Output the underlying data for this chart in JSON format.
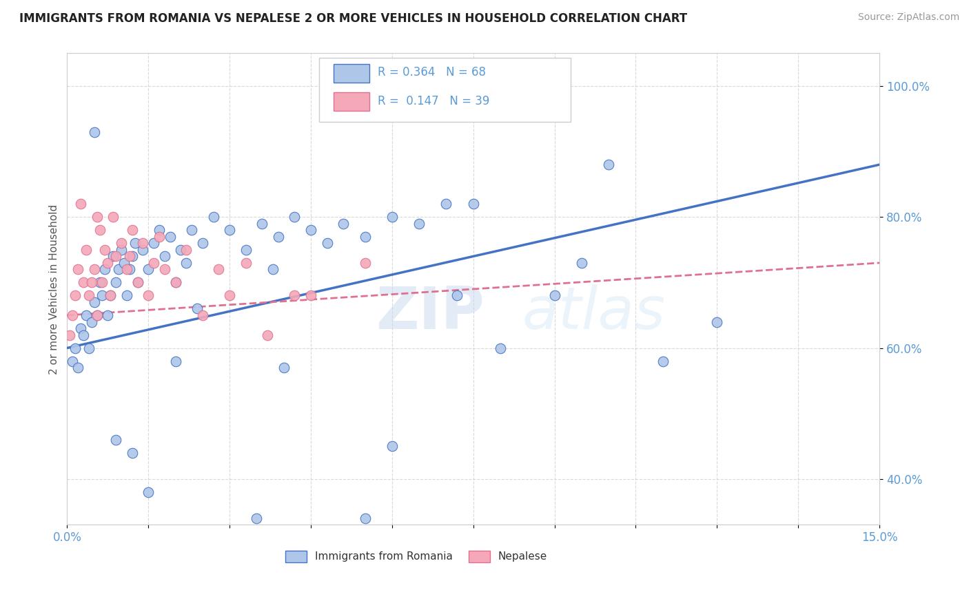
{
  "title": "IMMIGRANTS FROM ROMANIA VS NEPALESE 2 OR MORE VEHICLES IN HOUSEHOLD CORRELATION CHART",
  "source": "Source: ZipAtlas.com",
  "ylabel_label": "2 or more Vehicles in Household",
  "legend_romania": "Immigrants from Romania",
  "legend_nepalese": "Nepalese",
  "R_romania": 0.364,
  "N_romania": 68,
  "R_nepalese": 0.147,
  "N_nepalese": 39,
  "color_romania": "#aec6e8",
  "color_nepalese": "#f4a8b8",
  "color_line_romania": "#4472c4",
  "color_line_nepalese": "#e07090",
  "color_tick": "#5b9bd5",
  "xmin": 0.0,
  "xmax": 15.0,
  "ymin": 33.0,
  "ymax": 105.0,
  "yticks": [
    40.0,
    60.0,
    80.0,
    100.0
  ],
  "romania_x": [
    0.1,
    0.15,
    0.2,
    0.25,
    0.3,
    0.35,
    0.4,
    0.45,
    0.5,
    0.55,
    0.6,
    0.65,
    0.7,
    0.75,
    0.8,
    0.85,
    0.9,
    0.95,
    1.0,
    1.05,
    1.1,
    1.15,
    1.2,
    1.25,
    1.3,
    1.4,
    1.5,
    1.6,
    1.7,
    1.8,
    1.9,
    2.0,
    2.1,
    2.2,
    2.3,
    2.5,
    2.7,
    3.0,
    3.3,
    3.6,
    3.9,
    4.2,
    4.5,
    4.8,
    5.1,
    5.5,
    6.0,
    6.5,
    7.0,
    7.5,
    8.0,
    9.0,
    9.5,
    10.0,
    11.0,
    12.0,
    0.5,
    0.9,
    1.2,
    1.5,
    2.0,
    2.4,
    3.5,
    4.0,
    5.5,
    6.0,
    3.8,
    7.2
  ],
  "romania_y": [
    58,
    60,
    57,
    63,
    62,
    65,
    60,
    64,
    67,
    65,
    70,
    68,
    72,
    65,
    68,
    74,
    70,
    72,
    75,
    73,
    68,
    72,
    74,
    76,
    70,
    75,
    72,
    76,
    78,
    74,
    77,
    70,
    75,
    73,
    78,
    76,
    80,
    78,
    75,
    79,
    77,
    80,
    78,
    76,
    79,
    77,
    80,
    79,
    82,
    82,
    60,
    68,
    73,
    88,
    58,
    64,
    93,
    46,
    44,
    38,
    58,
    66,
    34,
    57,
    34,
    45,
    72,
    68
  ],
  "nepalese_x": [
    0.05,
    0.1,
    0.15,
    0.2,
    0.3,
    0.35,
    0.4,
    0.5,
    0.55,
    0.6,
    0.65,
    0.7,
    0.75,
    0.8,
    0.85,
    0.9,
    1.0,
    1.1,
    1.2,
    1.3,
    1.4,
    1.5,
    1.6,
    1.7,
    1.8,
    2.0,
    2.2,
    2.5,
    2.8,
    3.0,
    3.3,
    3.7,
    4.2,
    0.25,
    0.45,
    0.55,
    1.15,
    5.5,
    4.5
  ],
  "nepalese_y": [
    62,
    65,
    68,
    72,
    70,
    75,
    68,
    72,
    65,
    78,
    70,
    75,
    73,
    68,
    80,
    74,
    76,
    72,
    78,
    70,
    76,
    68,
    73,
    77,
    72,
    70,
    75,
    65,
    72,
    68,
    73,
    62,
    68,
    82,
    70,
    80,
    74,
    73,
    68
  ],
  "trend_romania_x0": 0.0,
  "trend_romania_x1": 15.0,
  "trend_nepalese_x0": 0.0,
  "trend_nepalese_x1": 15.0
}
